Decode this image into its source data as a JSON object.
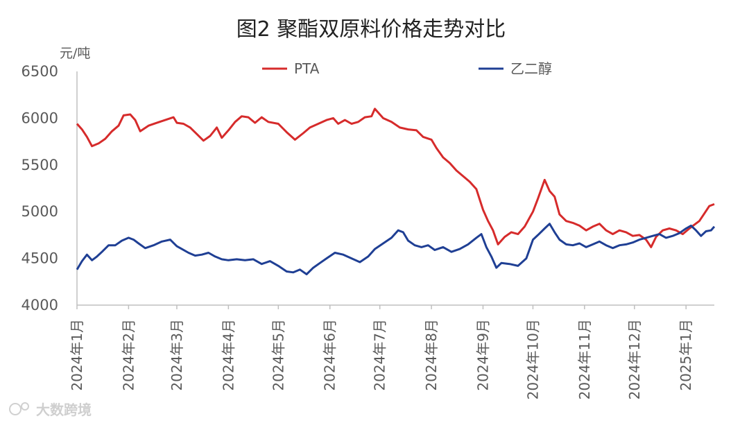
{
  "chart_data": {
    "type": "line",
    "title": "图2 聚酯双原料价格走势对比",
    "ylabel": "元/吨",
    "xlabel": "",
    "ylim": [
      4000,
      6500
    ],
    "yticks": [
      4000,
      4500,
      5000,
      5500,
      6000,
      6500
    ],
    "x_range": [
      "2024-01-01",
      "2025-01-18"
    ],
    "x_tick_dates": [
      "2024-01-01",
      "2024-02-01",
      "2024-03-01",
      "2024-04-01",
      "2024-05-01",
      "2024-06-01",
      "2024-07-01",
      "2024-08-01",
      "2024-09-01",
      "2024-10-01",
      "2024-11-01",
      "2024-12-01",
      "2025-01-01"
    ],
    "x_tick_labels": [
      "2024年1月",
      "2024年2月",
      "2024年3月",
      "2024年4月",
      "2024年5月",
      "2024年6月",
      "2024年7月",
      "2024年8月",
      "2024年9月",
      "2024年10月",
      "2024年11月",
      "2024年12月",
      "2025年1月"
    ],
    "grid": false,
    "legend_position": "top",
    "series": [
      {
        "name": "PTA",
        "color": "#d62b2b",
        "points": [
          [
            "2024-01-01",
            5940
          ],
          [
            "2024-01-04",
            5880
          ],
          [
            "2024-01-07",
            5800
          ],
          [
            "2024-01-10",
            5700
          ],
          [
            "2024-01-14",
            5730
          ],
          [
            "2024-01-18",
            5780
          ],
          [
            "2024-01-22",
            5860
          ],
          [
            "2024-01-26",
            5920
          ],
          [
            "2024-01-29",
            6030
          ],
          [
            "2024-02-02",
            6040
          ],
          [
            "2024-02-05",
            5980
          ],
          [
            "2024-02-08",
            5860
          ],
          [
            "2024-02-13",
            5920
          ],
          [
            "2024-02-18",
            5950
          ],
          [
            "2024-02-23",
            5980
          ],
          [
            "2024-02-28",
            6010
          ],
          [
            "2024-03-01",
            5950
          ],
          [
            "2024-03-05",
            5940
          ],
          [
            "2024-03-09",
            5900
          ],
          [
            "2024-03-13",
            5830
          ],
          [
            "2024-03-17",
            5760
          ],
          [
            "2024-03-21",
            5810
          ],
          [
            "2024-03-25",
            5900
          ],
          [
            "2024-03-28",
            5790
          ],
          [
            "2024-04-01",
            5870
          ],
          [
            "2024-04-05",
            5960
          ],
          [
            "2024-04-09",
            6020
          ],
          [
            "2024-04-13",
            6010
          ],
          [
            "2024-04-17",
            5950
          ],
          [
            "2024-04-21",
            6010
          ],
          [
            "2024-04-25",
            5960
          ],
          [
            "2024-05-01",
            5940
          ],
          [
            "2024-05-06",
            5850
          ],
          [
            "2024-05-11",
            5770
          ],
          [
            "2024-05-16",
            5840
          ],
          [
            "2024-05-20",
            5900
          ],
          [
            "2024-05-25",
            5940
          ],
          [
            "2024-05-30",
            5980
          ],
          [
            "2024-06-03",
            6000
          ],
          [
            "2024-06-06",
            5940
          ],
          [
            "2024-06-10",
            5980
          ],
          [
            "2024-06-14",
            5940
          ],
          [
            "2024-06-18",
            5960
          ],
          [
            "2024-06-22",
            6010
          ],
          [
            "2024-06-26",
            6020
          ],
          [
            "2024-06-28",
            6100
          ],
          [
            "2024-07-03",
            6000
          ],
          [
            "2024-07-08",
            5960
          ],
          [
            "2024-07-13",
            5900
          ],
          [
            "2024-07-18",
            5880
          ],
          [
            "2024-07-23",
            5870
          ],
          [
            "2024-07-27",
            5800
          ],
          [
            "2024-08-01",
            5770
          ],
          [
            "2024-08-04",
            5680
          ],
          [
            "2024-08-08",
            5580
          ],
          [
            "2024-08-12",
            5520
          ],
          [
            "2024-08-16",
            5440
          ],
          [
            "2024-08-20",
            5380
          ],
          [
            "2024-08-24",
            5320
          ],
          [
            "2024-08-28",
            5240
          ],
          [
            "2024-09-01",
            5020
          ],
          [
            "2024-09-04",
            4900
          ],
          [
            "2024-09-07",
            4800
          ],
          [
            "2024-09-10",
            4650
          ],
          [
            "2024-09-14",
            4730
          ],
          [
            "2024-09-18",
            4780
          ],
          [
            "2024-09-22",
            4760
          ],
          [
            "2024-09-26",
            4840
          ],
          [
            "2024-10-01",
            5000
          ],
          [
            "2024-10-04",
            5140
          ],
          [
            "2024-10-08",
            5340
          ],
          [
            "2024-10-11",
            5220
          ],
          [
            "2024-10-14",
            5160
          ],
          [
            "2024-10-17",
            4970
          ],
          [
            "2024-10-21",
            4900
          ],
          [
            "2024-10-25",
            4880
          ],
          [
            "2024-10-29",
            4850
          ],
          [
            "2024-11-02",
            4800
          ],
          [
            "2024-11-06",
            4840
          ],
          [
            "2024-11-10",
            4870
          ],
          [
            "2024-11-14",
            4800
          ],
          [
            "2024-11-18",
            4760
          ],
          [
            "2024-11-22",
            4800
          ],
          [
            "2024-11-26",
            4780
          ],
          [
            "2024-11-30",
            4740
          ],
          [
            "2024-12-04",
            4750
          ],
          [
            "2024-12-08",
            4700
          ],
          [
            "2024-12-11",
            4620
          ],
          [
            "2024-12-14",
            4730
          ],
          [
            "2024-12-18",
            4800
          ],
          [
            "2024-12-22",
            4820
          ],
          [
            "2024-12-26",
            4800
          ],
          [
            "2024-12-30",
            4760
          ],
          [
            "2025-01-03",
            4820
          ],
          [
            "2025-01-06",
            4860
          ],
          [
            "2025-01-09",
            4900
          ],
          [
            "2025-01-12",
            4980
          ],
          [
            "2025-01-15",
            5060
          ],
          [
            "2025-01-18",
            5080
          ]
        ]
      },
      {
        "name": "乙二醇",
        "color": "#1f3f94",
        "points": [
          [
            "2024-01-01",
            4380
          ],
          [
            "2024-01-04",
            4470
          ],
          [
            "2024-01-07",
            4540
          ],
          [
            "2024-01-10",
            4480
          ],
          [
            "2024-01-13",
            4520
          ],
          [
            "2024-01-16",
            4570
          ],
          [
            "2024-01-20",
            4640
          ],
          [
            "2024-01-24",
            4640
          ],
          [
            "2024-01-28",
            4690
          ],
          [
            "2024-02-01",
            4720
          ],
          [
            "2024-02-04",
            4700
          ],
          [
            "2024-02-07",
            4660
          ],
          [
            "2024-02-11",
            4610
          ],
          [
            "2024-02-16",
            4640
          ],
          [
            "2024-02-21",
            4680
          ],
          [
            "2024-02-26",
            4700
          ],
          [
            "2024-03-01",
            4630
          ],
          [
            "2024-03-04",
            4600
          ],
          [
            "2024-03-08",
            4560
          ],
          [
            "2024-03-12",
            4530
          ],
          [
            "2024-03-16",
            4540
          ],
          [
            "2024-03-20",
            4560
          ],
          [
            "2024-03-24",
            4520
          ],
          [
            "2024-03-28",
            4490
          ],
          [
            "2024-04-01",
            4480
          ],
          [
            "2024-04-06",
            4490
          ],
          [
            "2024-04-11",
            4480
          ],
          [
            "2024-04-16",
            4490
          ],
          [
            "2024-04-21",
            4440
          ],
          [
            "2024-04-26",
            4470
          ],
          [
            "2024-05-01",
            4420
          ],
          [
            "2024-05-06",
            4360
          ],
          [
            "2024-05-10",
            4350
          ],
          [
            "2024-05-14",
            4380
          ],
          [
            "2024-05-18",
            4330
          ],
          [
            "2024-05-22",
            4400
          ],
          [
            "2024-05-26",
            4450
          ],
          [
            "2024-05-30",
            4500
          ],
          [
            "2024-06-04",
            4560
          ],
          [
            "2024-06-09",
            4540
          ],
          [
            "2024-06-14",
            4500
          ],
          [
            "2024-06-19",
            4460
          ],
          [
            "2024-06-24",
            4520
          ],
          [
            "2024-06-28",
            4600
          ],
          [
            "2024-07-03",
            4660
          ],
          [
            "2024-07-08",
            4720
          ],
          [
            "2024-07-12",
            4800
          ],
          [
            "2024-07-15",
            4780
          ],
          [
            "2024-07-18",
            4690
          ],
          [
            "2024-07-22",
            4640
          ],
          [
            "2024-07-26",
            4620
          ],
          [
            "2024-07-30",
            4640
          ],
          [
            "2024-08-03",
            4590
          ],
          [
            "2024-08-08",
            4620
          ],
          [
            "2024-08-13",
            4570
          ],
          [
            "2024-08-18",
            4600
          ],
          [
            "2024-08-23",
            4650
          ],
          [
            "2024-08-28",
            4720
          ],
          [
            "2024-08-31",
            4760
          ],
          [
            "2024-09-03",
            4620
          ],
          [
            "2024-09-06",
            4520
          ],
          [
            "2024-09-09",
            4400
          ],
          [
            "2024-09-12",
            4450
          ],
          [
            "2024-09-17",
            4440
          ],
          [
            "2024-09-22",
            4420
          ],
          [
            "2024-09-27",
            4500
          ],
          [
            "2024-10-01",
            4700
          ],
          [
            "2024-10-04",
            4750
          ],
          [
            "2024-10-08",
            4820
          ],
          [
            "2024-10-11",
            4870
          ],
          [
            "2024-10-14",
            4780
          ],
          [
            "2024-10-17",
            4700
          ],
          [
            "2024-10-21",
            4650
          ],
          [
            "2024-10-25",
            4640
          ],
          [
            "2024-10-29",
            4660
          ],
          [
            "2024-11-02",
            4620
          ],
          [
            "2024-11-06",
            4650
          ],
          [
            "2024-11-10",
            4680
          ],
          [
            "2024-11-14",
            4640
          ],
          [
            "2024-11-18",
            4610
          ],
          [
            "2024-11-22",
            4640
          ],
          [
            "2024-11-26",
            4650
          ],
          [
            "2024-11-30",
            4670
          ],
          [
            "2024-12-04",
            4700
          ],
          [
            "2024-12-08",
            4720
          ],
          [
            "2024-12-12",
            4740
          ],
          [
            "2024-12-16",
            4760
          ],
          [
            "2024-12-20",
            4720
          ],
          [
            "2024-12-24",
            4740
          ],
          [
            "2024-12-28",
            4770
          ],
          [
            "2025-01-01",
            4820
          ],
          [
            "2025-01-04",
            4850
          ],
          [
            "2025-01-07",
            4800
          ],
          [
            "2025-01-10",
            4740
          ],
          [
            "2025-01-13",
            4790
          ],
          [
            "2025-01-16",
            4800
          ],
          [
            "2025-01-18",
            4840
          ]
        ]
      }
    ]
  },
  "watermark": "大数跨境"
}
